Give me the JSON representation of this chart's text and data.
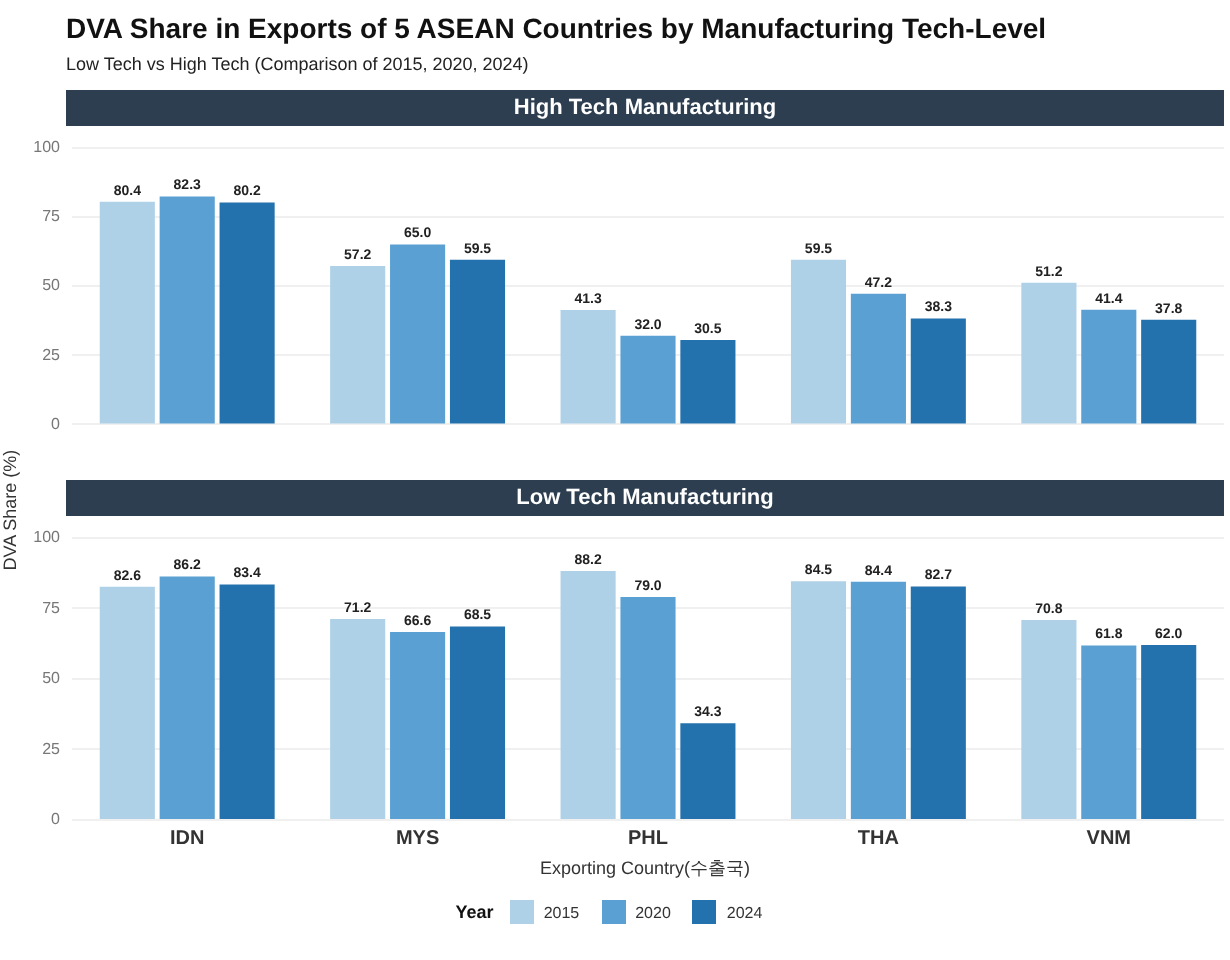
{
  "chart_data": [
    {
      "type": "bar",
      "title": "High Tech Manufacturing",
      "annotations": [
        "DVA Share in Exports of 5 ASEAN Countries by Manufacturing Tech-Level",
        "Low Tech vs High Tech (Comparison of 2015, 2020, 2024)"
      ],
      "ylabel": "DVA Share (%)",
      "categories": [
        null,
        null,
        null,
        null,
        null
      ],
      "tick_labels": "y",
      "series": [
        {
          "color": "#aed1e8",
          "values": [
            80.4,
            57.2,
            41.3,
            59.5,
            51.2
          ],
          "value_labels": [
            "80.4",
            "57.2",
            "41.3",
            "59.5",
            "51.2"
          ]
        },
        {
          "color": "#5aa0d2",
          "values": [
            82.3,
            65.0,
            32.0,
            47.2,
            41.4
          ],
          "value_labels": [
            "82.3",
            "65.0",
            "32.0",
            "47.2",
            "41.4"
          ]
        },
        {
          "color": "#2472ad",
          "values": [
            80.2,
            59.5,
            30.5,
            38.3,
            37.8
          ],
          "value_labels": [
            "80.2",
            "59.5",
            "30.5",
            "38.3",
            "37.8"
          ]
        }
      ],
      "ylim": [
        0,
        100
      ],
      "yticks": [
        0,
        25,
        50,
        75,
        100
      ],
      "grid": "y"
    },
    {
      "type": "bar",
      "title": "Low Tech Manufacturing",
      "xlabel": "Exporting Country(수출국)",
      "categories": [
        "IDN",
        "MYS",
        "PHL",
        "THA",
        "VNM"
      ],
      "series": [
        {
          "name": "2015",
          "color": "#aed1e8",
          "values": [
            82.6,
            71.2,
            88.2,
            84.5,
            70.8
          ],
          "value_labels": [
            "82.6",
            "71.2",
            "88.2",
            "84.5",
            "70.8"
          ]
        },
        {
          "name": "2020",
          "color": "#5aa0d2",
          "values": [
            86.2,
            66.6,
            79.0,
            84.4,
            61.8
          ],
          "value_labels": [
            "86.2",
            "66.6",
            "79.0",
            "84.4",
            "61.8"
          ]
        },
        {
          "name": "2024",
          "color": "#2472ad",
          "values": [
            83.4,
            68.5,
            34.3,
            82.7,
            62.0
          ],
          "value_labels": [
            "83.4",
            "68.5",
            "34.3",
            "82.7",
            "62.0"
          ]
        }
      ],
      "ylim": [
        0,
        100
      ],
      "yticks": [
        0,
        25,
        50,
        75,
        100
      ],
      "grid": "y",
      "legend": "bottom",
      "legend_title": "Year"
    }
  ]
}
